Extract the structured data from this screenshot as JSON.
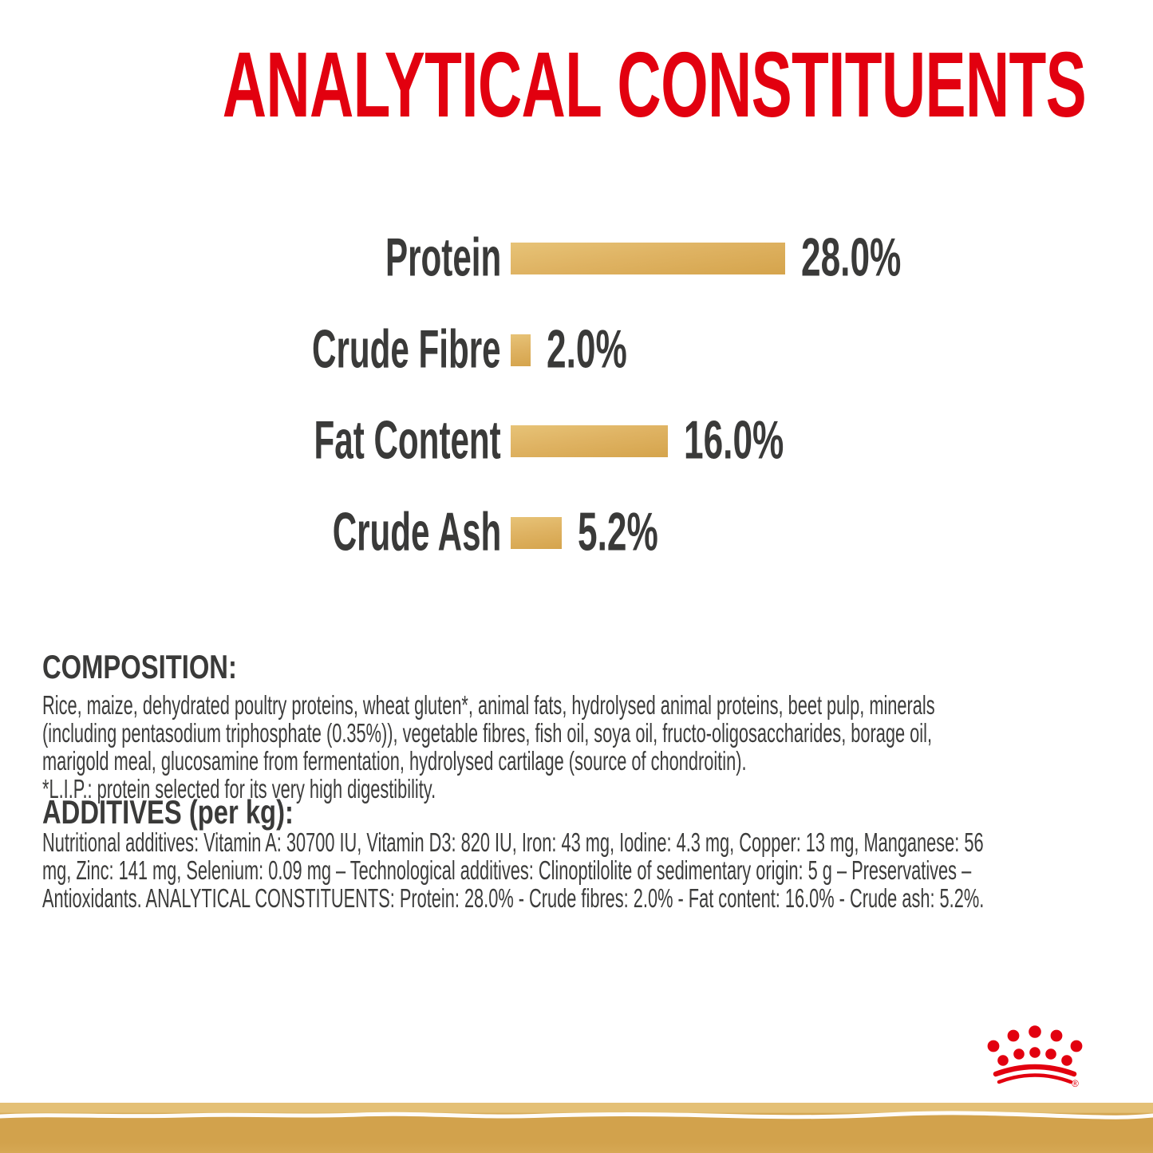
{
  "title": "ANALYTICAL CONSTITUENTS",
  "chart_data": {
    "type": "bar",
    "title": "ANALYTICAL CONSTITUENTS",
    "categories": [
      "Protein",
      "Crude Fibre",
      "Fat Content",
      "Crude Ash"
    ],
    "values": [
      28.0,
      2.0,
      16.0,
      5.2
    ],
    "value_labels": [
      "28.0%",
      "2.0%",
      "16.0%",
      "5.2%"
    ],
    "unit": "%",
    "xlabel": "",
    "ylabel": "",
    "xlim": [
      0,
      30
    ],
    "orientation": "horizontal",
    "grid": false,
    "legend": false,
    "bar_color": "#DDAF5C"
  },
  "composition": {
    "heading": "COMPOSITION:",
    "lines": [
      "Rice, maize, dehydrated poultry proteins, wheat gluten*, animal fats, hydrolysed animal proteins, beet pulp, minerals",
      "(including pentasodium triphosphate (0.35%)), vegetable fibres, fish oil, soya oil, fructo-oligosaccharides, borage oil,",
      "marigold meal, glucosamine from fermentation, hydrolysed cartilage (source of chondroitin).",
      "*L.I.P.: protein selected for its very high digestibility."
    ]
  },
  "additives": {
    "heading": "ADDITIVES (per kg):",
    "lines": [
      "Nutritional additives: Vitamin A: 30700 IU, Vitamin D3: 820 IU, Iron: 43 mg, Iodine: 4.3 mg, Copper: 13 mg, Manganese: 56",
      "mg, Zinc: 141 mg, Selenium: 0.09 mg – Technological additives: Clinoptilolite of sedimentary origin: 5 g – Preservatives –",
      "Antioxidants. ANALYTICAL CONSTITUENTS: Protein: 28.0% - Crude fibres: 2.0% - Fat content: 16.0% - Crude ash: 5.2%."
    ]
  },
  "branding": {
    "logo": "royal-canin-crown",
    "registered_mark": "®"
  },
  "colors": {
    "accent_red": "#E2000F",
    "text_dark": "#3A3A39",
    "bar_gradient_light": "#E7C377",
    "bar_gradient_dark": "#D5A44C",
    "band_gold": "#D2A24C",
    "band_gold_light": "#E4C076",
    "band_stroke_white": "#FFFFFF",
    "background": "#FFFFFF"
  }
}
